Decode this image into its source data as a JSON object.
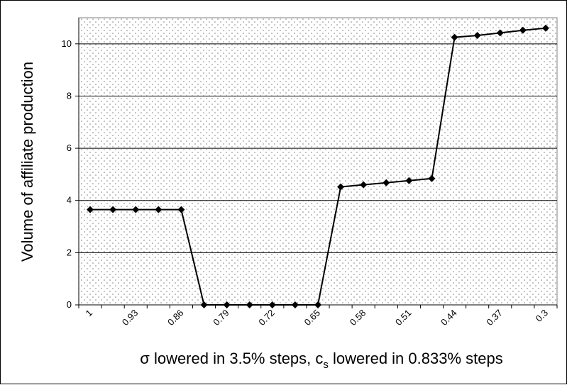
{
  "chart_data": {
    "type": "line",
    "x_tick_labels": [
      "1",
      "0.93",
      "0.86",
      "0.79",
      "0.72",
      "0.65",
      "0.58",
      "0.51",
      "0.44",
      "0.37",
      "0.3"
    ],
    "y_tick_labels": [
      "0",
      "2",
      "4",
      "6",
      "8",
      "10"
    ],
    "ylim": [
      0,
      11
    ],
    "y_gridlines": [
      2,
      4,
      6,
      8,
      10
    ],
    "ylabel": "Volume of affiliate production",
    "xlabel_prefix": "σ lowered in 3.5% steps, c",
    "xlabel_subscript": "s",
    "xlabel_suffix": " lowered in 0.833% steps",
    "grid": true,
    "background": "dotted",
    "series": [
      {
        "marker": "diamond",
        "color": "#000000",
        "values": [
          3.65,
          3.65,
          3.65,
          3.65,
          3.65,
          0,
          0,
          0,
          0,
          0,
          0,
          4.52,
          4.6,
          4.68,
          4.76,
          4.84,
          10.25,
          10.32,
          10.42,
          10.52,
          10.6
        ]
      }
    ]
  }
}
